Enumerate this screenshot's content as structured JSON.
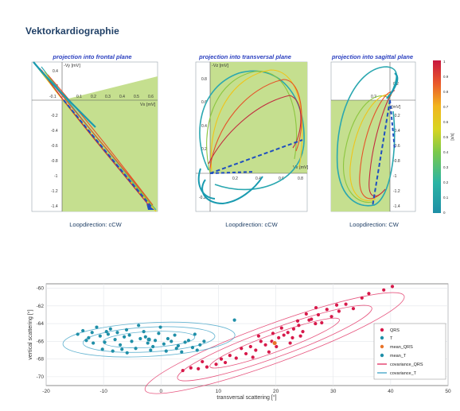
{
  "page": {
    "title": "Vektorkardiographie"
  },
  "colors": {
    "plane_fill": "#b7d77a",
    "loop_dash": "#1f4fc0",
    "qrs": "#d7194a",
    "t": "#1f8fa8",
    "mean": "#e8742a",
    "cov_qrs": "#e33a6a",
    "cov_t": "#4aa7c9",
    "heading": "#1f3f66",
    "caption": "#1f3f66"
  },
  "projections": [
    {
      "title": "projection into frontal plane",
      "y_axis_label": "-Vy [mV]",
      "x_axis_label": "Vx [mV]",
      "x_ticks": [
        "-0.1",
        "0.1",
        "0.2",
        "0.3",
        "0.4",
        "0.5",
        "0.6"
      ],
      "y_ticks": [
        "0.4",
        "0.2",
        "-0.2",
        "-0.4",
        "-0.6",
        "-0.8",
        "-1",
        "-1.2",
        "-1.4"
      ],
      "caption": "Loopdirection: cCW"
    },
    {
      "title": "projection into transversal plane",
      "y_axis_label": "-Vz [mV]",
      "x_axis_label": "Vx [mV]",
      "x_ticks": [
        "0.2",
        "0.4",
        "0.6",
        "0.8"
      ],
      "y_ticks": [
        "0.8",
        "0.6",
        "0.4",
        "0.2",
        "-0.2"
      ],
      "caption": "Loopdirection: cCW"
    },
    {
      "title": "projection into sagittal plane",
      "y_axis_label": "[mV]",
      "x_axis_label": "",
      "x_ticks": [
        "0.2"
      ],
      "y_ticks": [
        "0.2",
        "-0.2",
        "-0.4",
        "-0.6",
        "-0.8",
        "-1",
        "-1.2",
        "-1.4"
      ],
      "caption": "Loopdirection: CW"
    }
  ],
  "colorbar": {
    "label": "[s/s]",
    "ticks": [
      "1",
      "0.9",
      "0.8",
      "0.7",
      "0.6",
      "0.5",
      "0.4",
      "0.3",
      "0.2",
      "0.1",
      "0"
    ]
  },
  "chart_data": {
    "type": "scatter",
    "title": "",
    "xlabel": "transversal scattering  [°]",
    "ylabel": "vertical scattering [°]",
    "xlim": [
      -20,
      50
    ],
    "ylim": [
      -71,
      -59.5
    ],
    "x_ticks": [
      -20,
      -10,
      0,
      10,
      20,
      30,
      40,
      50
    ],
    "y_ticks": [
      -60,
      -62,
      -64,
      -66,
      -68,
      -70
    ],
    "grid": true,
    "legend": "right",
    "legend_entries": [
      "QRS",
      "T",
      "mean_QRS",
      "mean_T",
      "covariance_QRS",
      "covariance_T"
    ],
    "series": [
      {
        "name": "QRS",
        "points": [
          [
            20.5,
            -65.6
          ],
          [
            22.1,
            -65.0
          ],
          [
            24.0,
            -64.2
          ],
          [
            25.8,
            -63.6
          ],
          [
            27.4,
            -63.0
          ],
          [
            18.2,
            -66.4
          ],
          [
            16.5,
            -67.0
          ],
          [
            14.8,
            -67.4
          ],
          [
            13.1,
            -67.9
          ],
          [
            11.2,
            -68.4
          ],
          [
            9.6,
            -68.6
          ],
          [
            8.0,
            -68.9
          ],
          [
            6.5,
            -69.1
          ],
          [
            5.2,
            -69.0
          ],
          [
            3.8,
            -69.3
          ],
          [
            19.3,
            -66.0
          ],
          [
            21.4,
            -65.3
          ],
          [
            23.1,
            -64.6
          ],
          [
            26.2,
            -63.5
          ],
          [
            28.9,
            -62.4
          ],
          [
            30.6,
            -61.9
          ],
          [
            32.2,
            -61.8
          ],
          [
            35.0,
            -61.1
          ],
          [
            38.8,
            -60.2
          ],
          [
            40.3,
            -59.8
          ],
          [
            36.2,
            -60.6
          ],
          [
            12.0,
            -67.6
          ],
          [
            15.6,
            -66.6
          ],
          [
            17.4,
            -66.0
          ],
          [
            22.9,
            -65.6
          ],
          [
            24.7,
            -64.9
          ],
          [
            26.9,
            -64.0
          ],
          [
            20.1,
            -66.6
          ],
          [
            18.8,
            -67.2
          ],
          [
            16.0,
            -67.8
          ],
          [
            10.5,
            -68.0
          ],
          [
            7.2,
            -68.3
          ],
          [
            28.0,
            -63.9
          ],
          [
            29.7,
            -63.2
          ],
          [
            31.0,
            -62.6
          ],
          [
            25.3,
            -62.9
          ],
          [
            23.8,
            -63.7
          ],
          [
            21.0,
            -64.5
          ],
          [
            19.5,
            -65.1
          ],
          [
            27.0,
            -62.2
          ],
          [
            33.5,
            -62.3
          ],
          [
            14.0,
            -66.8
          ],
          [
            22.5,
            -66.2
          ],
          [
            17.0,
            -65.4
          ],
          [
            24.3,
            -65.4
          ]
        ]
      },
      {
        "name": "T",
        "points": [
          [
            -12.0,
            -65.0
          ],
          [
            -10.6,
            -65.4
          ],
          [
            -9.2,
            -65.2
          ],
          [
            -8.0,
            -65.8
          ],
          [
            -6.4,
            -65.5
          ],
          [
            -5.1,
            -66.0
          ],
          [
            -3.6,
            -65.7
          ],
          [
            -2.3,
            -66.2
          ],
          [
            -1.0,
            -65.9
          ],
          [
            0.5,
            -66.3
          ],
          [
            1.8,
            -66.0
          ],
          [
            3.0,
            -66.5
          ],
          [
            4.2,
            -66.1
          ],
          [
            5.5,
            -66.7
          ],
          [
            6.8,
            -66.4
          ],
          [
            -13.6,
            -64.8
          ],
          [
            -14.5,
            -65.2
          ],
          [
            -11.2,
            -64.4
          ],
          [
            -8.8,
            -64.6
          ],
          [
            -6.0,
            -64.7
          ],
          [
            -3.0,
            -64.9
          ],
          [
            -0.4,
            -65.1
          ],
          [
            2.4,
            -65.3
          ],
          [
            -9.8,
            -66.1
          ],
          [
            -7.1,
            -66.4
          ],
          [
            -4.4,
            -66.8
          ],
          [
            -1.8,
            -67.0
          ],
          [
            0.9,
            -67.1
          ],
          [
            3.6,
            -67.2
          ],
          [
            -11.8,
            -66.2
          ],
          [
            -13.0,
            -65.9
          ],
          [
            -7.6,
            -65.0
          ],
          [
            -5.5,
            -65.3
          ],
          [
            -2.7,
            -65.5
          ],
          [
            1.2,
            -65.7
          ],
          [
            4.8,
            -65.9
          ],
          [
            7.5,
            -66.0
          ],
          [
            12.8,
            -63.6
          ],
          [
            -10.2,
            -66.9
          ],
          [
            -8.4,
            -67.1
          ],
          [
            -5.9,
            -67.3
          ],
          [
            -0.1,
            -64.4
          ],
          [
            -3.9,
            -64.2
          ],
          [
            5.9,
            -65.2
          ],
          [
            6.3,
            -67.0
          ],
          [
            -12.6,
            -65.6
          ],
          [
            -1.4,
            -66.6
          ],
          [
            2.7,
            -66.8
          ],
          [
            -6.8,
            -66.9
          ],
          [
            -9.5,
            -64.9
          ]
        ]
      },
      {
        "name": "mean_QRS",
        "points": [
          [
            19.8,
            -66.2
          ]
        ]
      },
      {
        "name": "mean_T",
        "points": [
          [
            -2.1,
            -65.8
          ]
        ]
      }
    ],
    "ellipses": [
      {
        "name": "covariance_QRS",
        "center": [
          19.8,
          -66.2
        ],
        "rx": [
          12,
          18,
          24
        ],
        "ry": [
          1.0,
          1.6,
          2.2
        ],
        "angle_deg": -20
      },
      {
        "name": "covariance_T",
        "center": [
          -2.1,
          -65.8
        ],
        "rx": [
          8,
          11.5,
          15
        ],
        "ry": [
          0.9,
          1.4,
          1.9
        ],
        "angle_deg": -3
      }
    ]
  }
}
